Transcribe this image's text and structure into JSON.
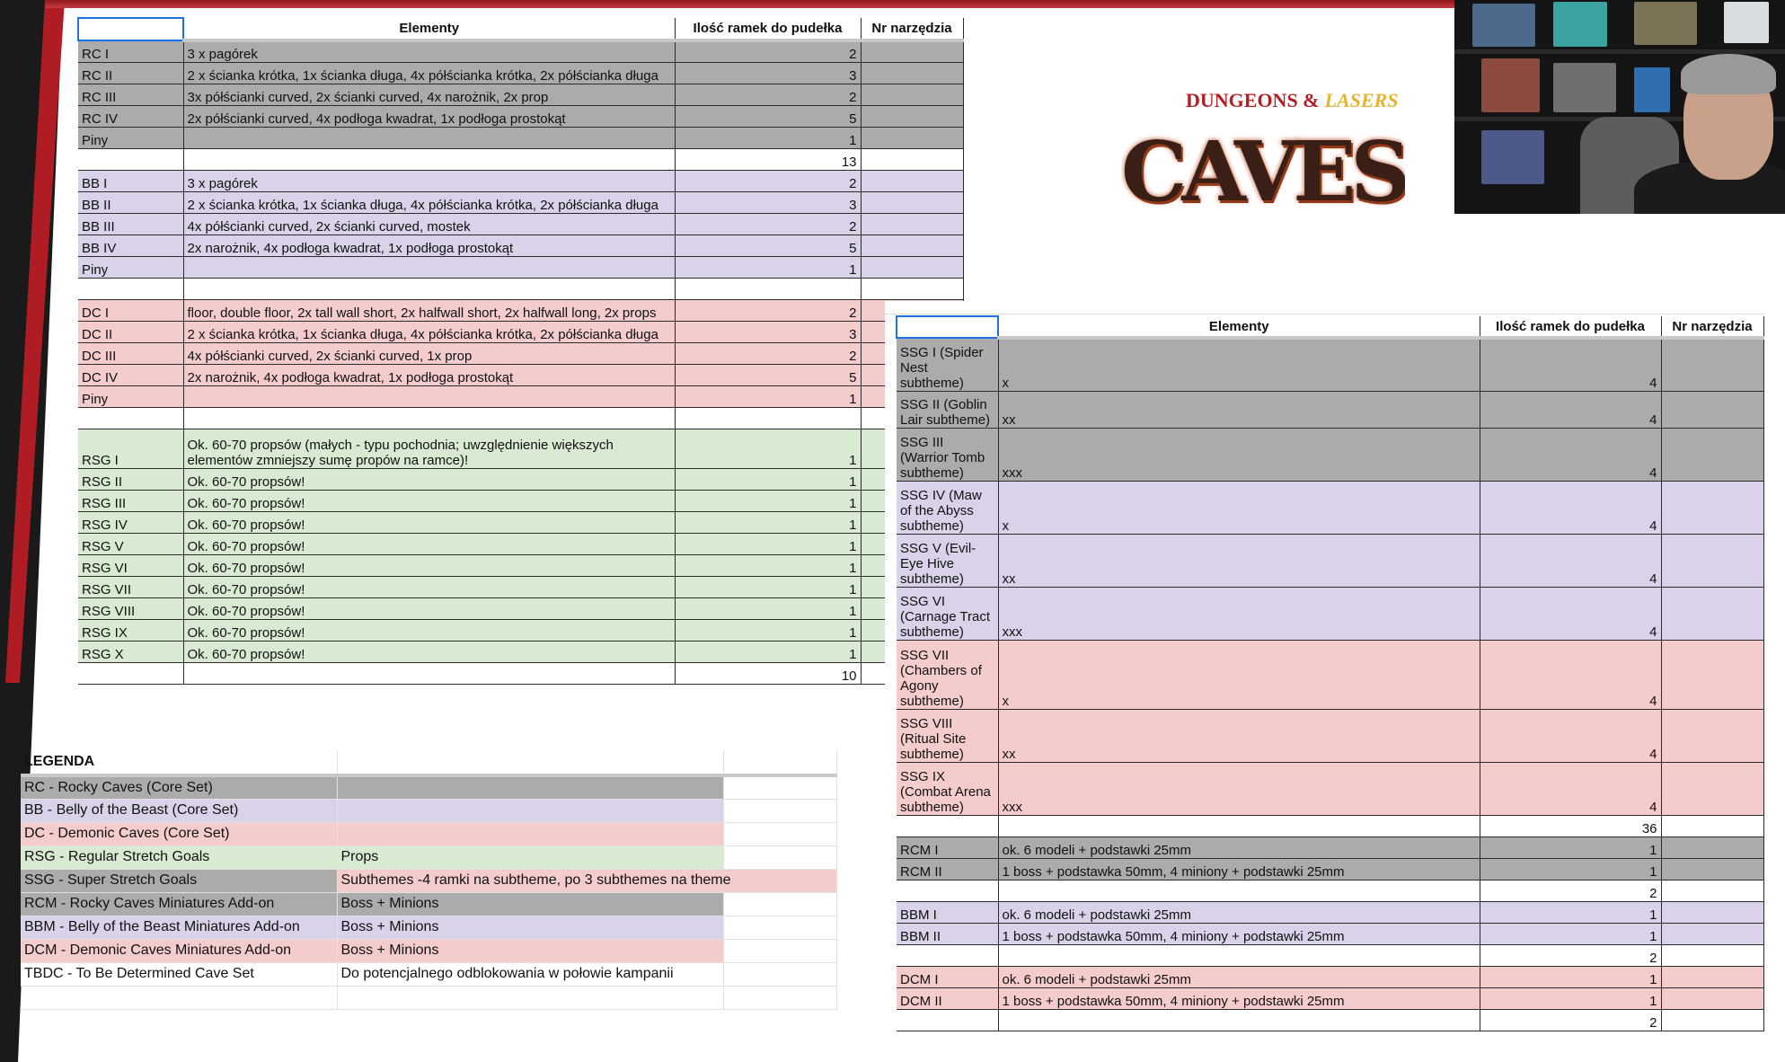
{
  "colors": {
    "gray": "#ababab",
    "lavender": "#d9d2e9",
    "pink": "#f4cccc",
    "green": "#d9ead3",
    "white": "#ffffff",
    "accent": "#1a73e8",
    "frame_red": "#b01c24"
  },
  "logo": {
    "line1_a": "Dungeons &",
    "line1_b": "Lasers",
    "line2": "CAVES"
  },
  "top_table": {
    "headers": [
      "",
      "Elementy",
      "Ilość ramek do pudełka",
      "Nr narzędzia"
    ],
    "rows": [
      {
        "code": "RC I",
        "elements": "3 x pagórek",
        "count": "2",
        "color": "gray"
      },
      {
        "code": "RC II",
        "elements": "2 x ścianka krótka, 1x ścianka długa, 4x półścianka krótka, 2x półścianka długa",
        "count": "3",
        "color": "gray"
      },
      {
        "code": "RC III",
        "elements": "3x półścianki curved, 2x ścianki curved, 4x narożnik, 2x prop",
        "count": "2",
        "color": "gray"
      },
      {
        "code": "RC IV",
        "elements": "2x półścianki curved, 4x podłoga kwadrat, 1x podłoga prostokąt",
        "count": "5",
        "color": "gray"
      },
      {
        "code": "Piny",
        "elements": "",
        "count": "1",
        "color": "gray"
      },
      {
        "code": "",
        "elements": "",
        "count": "13",
        "color": "white"
      },
      {
        "code": "BB I",
        "elements": "3 x pagórek",
        "count": "2",
        "color": "lavender"
      },
      {
        "code": "BB II",
        "elements": "2 x ścianka krótka, 1x ścianka długa, 4x półścianka krótka, 2x półścianka długa",
        "count": "3",
        "color": "lavender"
      },
      {
        "code": "BB III",
        "elements": "4x półścianki curved, 2x ścianki curved, mostek",
        "count": "2",
        "color": "lavender"
      },
      {
        "code": "BB IV",
        "elements": "2x narożnik, 4x podłoga kwadrat, 1x podłoga prostokąt",
        "count": "5",
        "color": "lavender"
      },
      {
        "code": "Piny",
        "elements": "",
        "count": "1",
        "color": "lavender"
      },
      {
        "code": "",
        "elements": "",
        "count": "",
        "color": "white"
      },
      {
        "code": "DC I",
        "elements": "floor, double floor, 2x tall wall short, 2x halfwall short, 2x halfwall long, 2x props",
        "count": "2",
        "color": "pink"
      },
      {
        "code": "DC II",
        "elements": "2 x ścianka krótka, 1x ścianka długa, 4x półścianka krótka, 2x półścianka długa",
        "count": "3",
        "color": "pink"
      },
      {
        "code": "DC III",
        "elements": "4x półścianki curved, 2x ścianki curved, 1x prop",
        "count": "2",
        "color": "pink"
      },
      {
        "code": "DC IV",
        "elements": "2x narożnik, 4x podłoga kwadrat, 1x podłoga prostokąt",
        "count": "5",
        "color": "pink"
      },
      {
        "code": "Piny",
        "elements": "",
        "count": "1",
        "color": "pink"
      },
      {
        "code": "",
        "elements": "",
        "count": "",
        "color": "white"
      },
      {
        "code": "RSG I",
        "elements": "Ok. 60-70 propsów (małych - typu pochodnia; uwzględnienie większych elementów zmniejszy sumę propów na ramce)!",
        "count": "1",
        "color": "green",
        "tall": true
      },
      {
        "code": "RSG II",
        "elements": "Ok. 60-70 propsów!",
        "count": "1",
        "color": "green"
      },
      {
        "code": "RSG III",
        "elements": "Ok. 60-70 propsów!",
        "count": "1",
        "color": "green"
      },
      {
        "code": "RSG IV",
        "elements": "Ok. 60-70 propsów!",
        "count": "1",
        "color": "green"
      },
      {
        "code": "RSG V",
        "elements": "Ok. 60-70 propsów!",
        "count": "1",
        "color": "green"
      },
      {
        "code": "RSG VI",
        "elements": "Ok. 60-70 propsów!",
        "count": "1",
        "color": "green"
      },
      {
        "code": "RSG VII",
        "elements": "Ok. 60-70 propsów!",
        "count": "1",
        "color": "green"
      },
      {
        "code": "RSG VIII",
        "elements": "Ok. 60-70 propsów!",
        "count": "1",
        "color": "green"
      },
      {
        "code": "RSG IX",
        "elements": "Ok. 60-70 propsów!",
        "count": "1",
        "color": "green"
      },
      {
        "code": "RSG X",
        "elements": "Ok. 60-70 propsów!",
        "count": "1",
        "color": "green"
      },
      {
        "code": "",
        "elements": "",
        "count": "10",
        "color": "white"
      }
    ]
  },
  "right_table": {
    "headers": [
      "",
      "Elementy",
      "Ilość ramek do pudełka",
      "Nr narzędzia"
    ],
    "rows": [
      {
        "code": "SSG I (Spider Nest subtheme)",
        "elements": "x",
        "count": "4",
        "color": "gray",
        "lines": 3
      },
      {
        "code": "SSG II (Goblin Lair subtheme)",
        "elements": "xx",
        "count": "4",
        "color": "gray",
        "lines": 2
      },
      {
        "code": "SSG III (Warrior Tomb subtheme)",
        "elements": "xxx",
        "count": "4",
        "color": "gray",
        "lines": 3
      },
      {
        "code": "SSG IV (Maw of the Abyss subtheme)",
        "elements": "x",
        "count": "4",
        "color": "lavender",
        "lines": 3
      },
      {
        "code": "SSG V (Evil-Eye Hive subtheme)",
        "elements": "xx",
        "count": "4",
        "color": "lavender",
        "lines": 3
      },
      {
        "code": "SSG VI (Carnage Tract subtheme)",
        "elements": "xxx",
        "count": "4",
        "color": "lavender",
        "lines": 3
      },
      {
        "code": "SSG VII (Chambers of Agony subtheme)",
        "elements": "x",
        "count": "4",
        "color": "pink",
        "lines": 4
      },
      {
        "code": "SSG VIII (Ritual Site subtheme)",
        "elements": "xx",
        "count": "4",
        "color": "pink",
        "lines": 3
      },
      {
        "code": "SSG IX (Combat Arena subtheme)",
        "elements": "xxx",
        "count": "4",
        "color": "pink",
        "lines": 3
      },
      {
        "code": "",
        "elements": "",
        "count": "36",
        "color": "white"
      },
      {
        "code": "RCM I",
        "elements": "ok. 6 modeli + podstawki 25mm",
        "count": "1",
        "color": "gray"
      },
      {
        "code": "RCM II",
        "elements": "1 boss + podstawka 50mm, 4 miniony + podstawki 25mm",
        "count": "1",
        "color": "gray"
      },
      {
        "code": "",
        "elements": "",
        "count": "2",
        "color": "white"
      },
      {
        "code": "BBM I",
        "elements": "ok. 6 modeli + podstawki 25mm",
        "count": "1",
        "color": "lavender"
      },
      {
        "code": "BBM II",
        "elements": "1 boss + podstawka 50mm, 4 miniony + podstawki 25mm",
        "count": "1",
        "color": "lavender"
      },
      {
        "code": "",
        "elements": "",
        "count": "2",
        "color": "white"
      },
      {
        "code": "DCM I",
        "elements": "ok. 6 modeli + podstawki 25mm",
        "count": "1",
        "color": "pink"
      },
      {
        "code": "DCM II",
        "elements": "1 boss + podstawka 50mm, 4 miniony + podstawki 25mm",
        "count": "1",
        "color": "pink"
      },
      {
        "code": "",
        "elements": "",
        "count": "2",
        "color": "white"
      }
    ]
  },
  "legend": {
    "title": "LEGENDA",
    "rows": [
      {
        "key": "RC - Rocky Caves (Core Set)",
        "note": "",
        "color": "gray"
      },
      {
        "key": "BB - Belly of the Beast (Core Set)",
        "note": "",
        "color": "lavender"
      },
      {
        "key": "DC - Demonic Caves (Core Set)",
        "note": "",
        "color": "pink"
      },
      {
        "key": "RSG - Regular Stretch Goals",
        "note": "Props",
        "color": "green"
      },
      {
        "key": "SSG - Super Stretch Goals",
        "note": "Subthemes -4 ramki na subtheme, po 3 subthemes na theme",
        "color": "gray",
        "note_color": "pink"
      },
      {
        "key": "RCM - Rocky Caves Miniatures Add-on",
        "note": "Boss + Minions",
        "color": "gray"
      },
      {
        "key": "BBM - Belly of the Beast Miniatures Add-on",
        "note": "Boss + Minions",
        "color": "lavender"
      },
      {
        "key": "DCM - Demonic Caves Miniatures Add-on",
        "note": "Boss + Minions",
        "color": "pink"
      },
      {
        "key": "TBDC - To Be Determined Cave Set",
        "note": "Do potencjalnego odblokowania w połowie kampanii",
        "color": "white"
      }
    ]
  }
}
